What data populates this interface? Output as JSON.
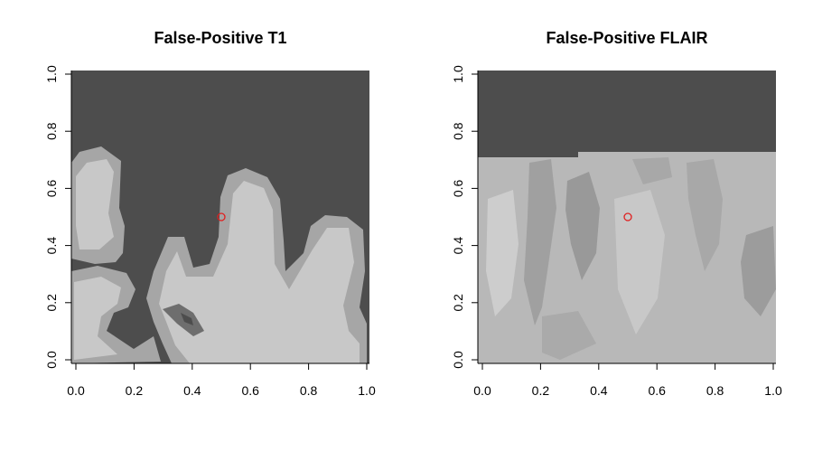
{
  "panels": [
    {
      "id": "t1",
      "title": "False-Positive T1",
      "background_color": "#4d4d4d",
      "marker": {
        "x": 0.5,
        "y": 0.5,
        "color": "#e02020",
        "shape": "open-circle"
      },
      "x_ticks": [
        "0.0",
        "0.2",
        "0.4",
        "0.6",
        "0.8",
        "1.0"
      ],
      "y_ticks": [
        "0.0",
        "0.2",
        "0.4",
        "0.6",
        "0.8",
        "1.0"
      ]
    },
    {
      "id": "flair",
      "title": "False-Positive FLAIR",
      "background_color": "#4d4d4d",
      "marker": {
        "x": 0.5,
        "y": 0.5,
        "color": "#e02020",
        "shape": "open-circle"
      },
      "x_ticks": [
        "0.0",
        "0.2",
        "0.4",
        "0.6",
        "0.8",
        "1.0"
      ],
      "y_ticks": [
        "0.0",
        "0.2",
        "0.4",
        "0.6",
        "0.8",
        "1.0"
      ]
    }
  ],
  "colors": {
    "tissue_light": "#c8c8c8",
    "tissue_mid": "#a6a6a6",
    "tissue_dark": "#8a8a8a",
    "flair_base": "#b8b8b8"
  }
}
